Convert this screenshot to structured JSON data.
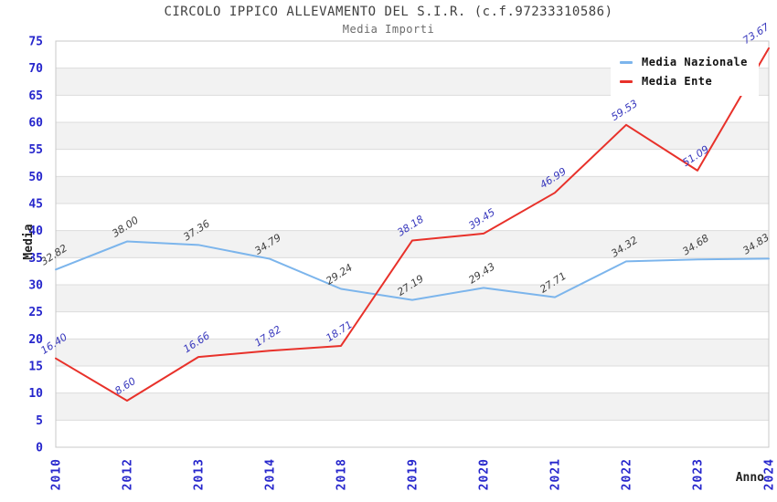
{
  "header": {
    "title": "CIRCOLO IPPICO ALLEVAMENTO DEL S.I.R. (c.f.97233310586)",
    "subtitle": "Media Importi"
  },
  "axes": {
    "y_title": "Media",
    "x_title": "Anno"
  },
  "legend": {
    "items": [
      {
        "label": "Media Nazionale",
        "color": "#7cb5ec"
      },
      {
        "label": "Media Ente",
        "color": "#e8312a"
      }
    ]
  },
  "chart_data": {
    "type": "line",
    "title": "CIRCOLO IPPICO ALLEVAMENTO DEL S.I.R. (c.f.97233310586)",
    "subtitle": "Media Importi",
    "xlabel": "Anno",
    "ylabel": "Media",
    "categories": [
      "2010",
      "2012",
      "2013",
      "2014",
      "2018",
      "2019",
      "2020",
      "2021",
      "2022",
      "2023",
      "2024"
    ],
    "series": [
      {
        "name": "Media Nazionale",
        "color": "#7cb5ec",
        "label_color": "#3f3f3f",
        "values": [
          32.82,
          38.0,
          37.36,
          34.79,
          29.24,
          27.19,
          29.43,
          27.71,
          34.32,
          34.68,
          34.83
        ]
      },
      {
        "name": "Media Ente",
        "color": "#e8312a",
        "label_color": "#3737bd",
        "values": [
          16.4,
          8.6,
          16.66,
          17.82,
          18.71,
          38.18,
          39.45,
          46.99,
          59.53,
          51.09,
          73.67
        ]
      }
    ],
    "ylim": [
      0,
      75
    ],
    "ytick_step": 5,
    "grid": "horizontal-bands",
    "legend_position": "top-right",
    "styles": {
      "tick_label_color": "#2626cc",
      "band_color": "#f2f2f2",
      "grid_color": "#dcdcdc",
      "border_color": "#c8c8c8"
    }
  }
}
